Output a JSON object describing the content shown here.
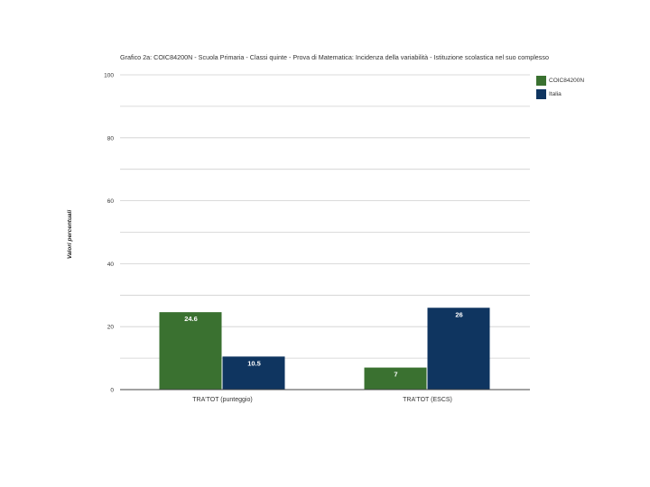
{
  "chart_data": {
    "type": "bar",
    "title": "Grafico 2a: COIC84200N - Scuola Primaria - Classi quinte - Prova di Matematica: Incidenza della variabilità - Istituzione scolastica nel suo complesso",
    "ylabel": "Valori percentuali",
    "xlabel": "",
    "categories": [
      "TRA'TOT (punteggio)",
      "TRA'TOT (ESCS)"
    ],
    "series": [
      {
        "name": "COIC84200N",
        "values": [
          24.6,
          7
        ],
        "value_labels": [
          "24.6",
          "7"
        ],
        "color": "#3a7130"
      },
      {
        "name": "Italia",
        "values": [
          10.5,
          26
        ],
        "value_labels": [
          "10.5",
          "26"
        ],
        "color": "#0f3560"
      }
    ],
    "ylim": [
      0,
      100
    ],
    "yticks": [
      0,
      20,
      40,
      60,
      80,
      100
    ],
    "ytick_labels": [
      "0",
      "20",
      "40",
      "60",
      "80",
      "100"
    ],
    "grid": true,
    "legend_position": "top-right"
  }
}
